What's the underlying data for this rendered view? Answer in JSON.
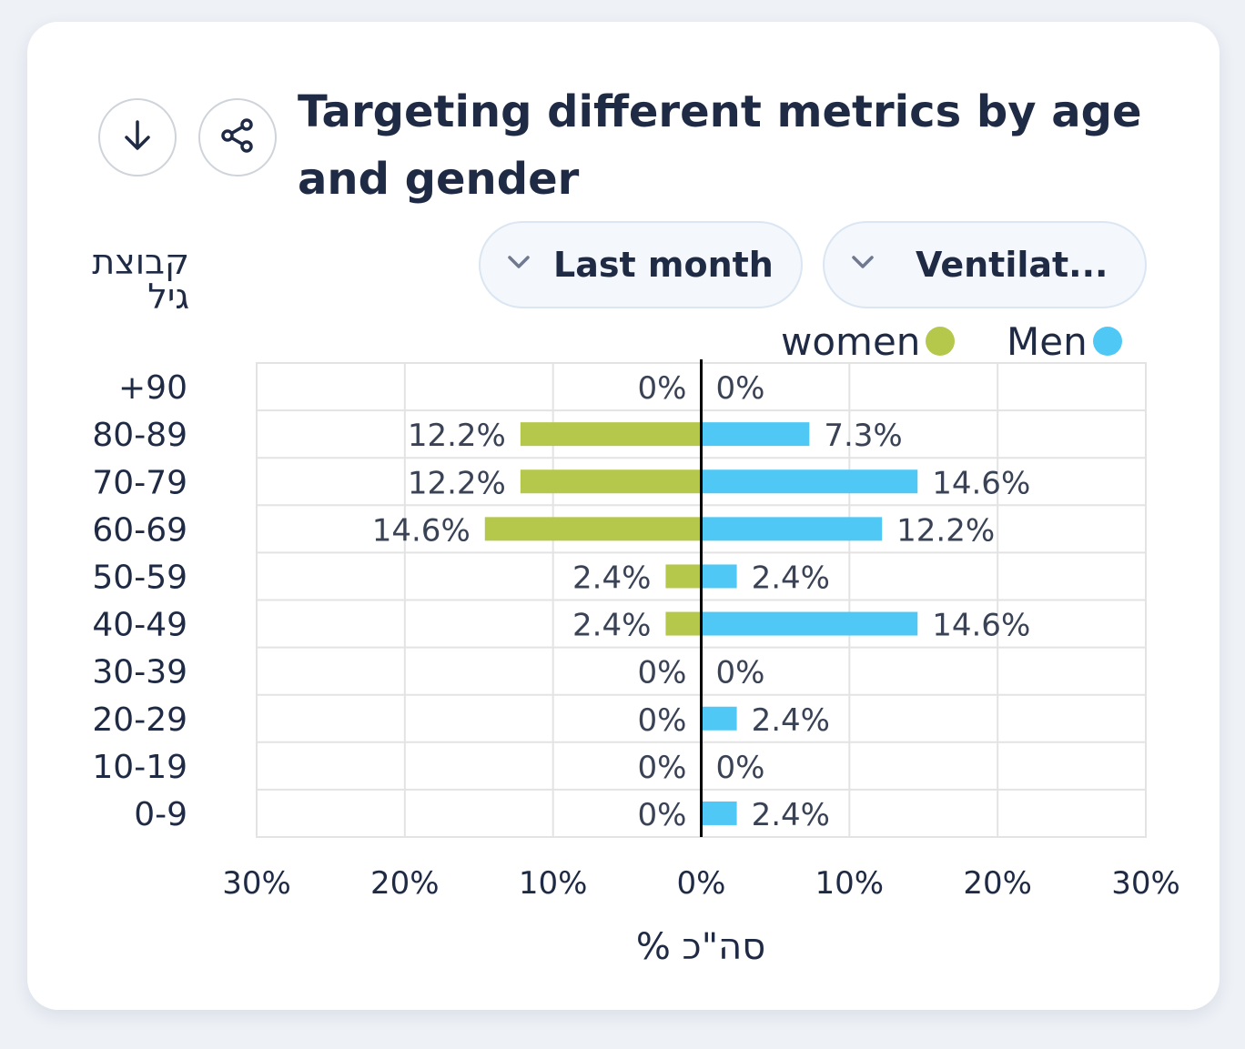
{
  "header": {
    "title": "Targeting different metrics by age and gender",
    "download_icon": "arrow-down-icon",
    "share_icon": "share-icon"
  },
  "filters": {
    "period": "Last month",
    "metric": "Ventilat..."
  },
  "colors": {
    "women": "#b5c84c",
    "men": "#4fc8f5",
    "text": "#1f2a44",
    "grid": "#e3e3e3"
  },
  "chart_data": {
    "type": "bar",
    "orientation": "horizontal-diverging",
    "categories": [
      "+90",
      "80-89",
      "70-79",
      "60-69",
      "50-59",
      "40-49",
      "30-39",
      "20-29",
      "10-19",
      "0-9"
    ],
    "series": [
      {
        "name": "women",
        "values": [
          0,
          12.2,
          12.2,
          14.6,
          2.4,
          2.4,
          0,
          0,
          0,
          0
        ]
      },
      {
        "name": "Men",
        "values": [
          0,
          7.3,
          14.6,
          12.2,
          2.4,
          14.6,
          0,
          2.4,
          0,
          2.4
        ]
      }
    ],
    "ylabel": "קבוצת גיל",
    "xlabel": "% סה\"כ",
    "xlim": [
      -30,
      30
    ],
    "xticks": [
      "30%",
      "20%",
      "10%",
      "0%",
      "10%",
      "20%",
      "30%"
    ],
    "grid": true,
    "legend": "top-right"
  }
}
